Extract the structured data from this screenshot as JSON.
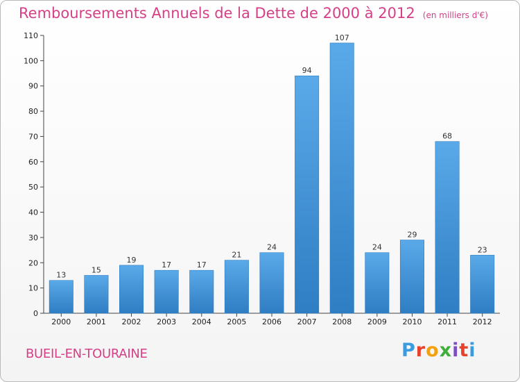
{
  "header": {
    "title": "Remboursements Annuels de la Dette de 2000 à 2012",
    "unit": "(en milliers d'€)"
  },
  "commune": "BUEIL-EN-TOURAINE",
  "logo": {
    "text": "Proxiti",
    "letter_colors": [
      "#3a9be0",
      "#e8412c",
      "#f2a10f",
      "#3fae3a",
      "#7b4fc4",
      "#e8412c",
      "#3a9be0"
    ]
  },
  "colors": {
    "bar_light": "#5aa9e8",
    "bar_dark": "#2f7dc3",
    "axis": "#444444",
    "grid": "#cccccc",
    "title": "#d63f86"
  },
  "chart_data": {
    "type": "bar",
    "title": "Remboursements Annuels de la Dette de 2000 à 2012",
    "xlabel": "",
    "ylabel": "",
    "categories": [
      "2000",
      "2001",
      "2002",
      "2003",
      "2004",
      "2005",
      "2006",
      "2007",
      "2008",
      "2009",
      "2010",
      "2011",
      "2012"
    ],
    "values": [
      13,
      15,
      19,
      17,
      17,
      21,
      24,
      94,
      107,
      24,
      29,
      68,
      23
    ],
    "ylim": [
      0,
      110
    ],
    "yticks": [
      0,
      10,
      20,
      30,
      40,
      50,
      60,
      70,
      80,
      90,
      100,
      110
    ],
    "grid": false,
    "legend": "none"
  }
}
